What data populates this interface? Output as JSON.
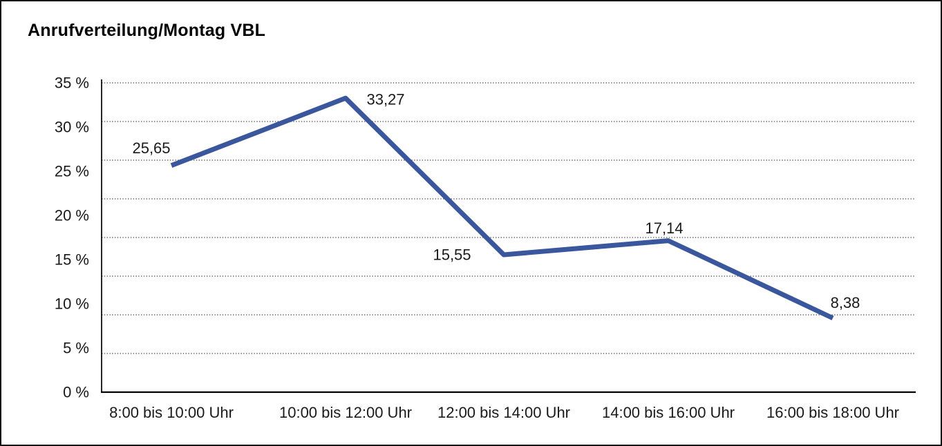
{
  "chart_data": {
    "type": "line",
    "title": "Anrufverteilung/Montag VBL",
    "categories": [
      "8:00 bis 10:00 Uhr",
      "10:00 bis 12:00 Uhr",
      "12:00 bis 14:00 Uhr",
      "14:00 bis 16:00 Uhr",
      "16:00 bis 18:00 Uhr"
    ],
    "values": [
      25.65,
      33.27,
      15.55,
      17.14,
      8.38
    ],
    "value_labels": [
      "25,65",
      "33,27",
      "15,55",
      "17,14",
      "8,38"
    ],
    "xlabel": "",
    "ylabel": "",
    "ylim": [
      0,
      35
    ],
    "y_tick_values": [
      0,
      5,
      10,
      15,
      20,
      25,
      30,
      35
    ],
    "y_tick_labels": [
      "0 %",
      "5 %",
      "10 %",
      "15 %",
      "20 %",
      "25 %",
      "30 %",
      "35 %"
    ],
    "grid": "horizontal-dotted",
    "legend_position": "none",
    "line_color": "#3A569D",
    "grid_color": "#4a4a4a",
    "axis_color": "#000000",
    "text_color": "#1a1a1a",
    "background_color": "#ffffff"
  }
}
